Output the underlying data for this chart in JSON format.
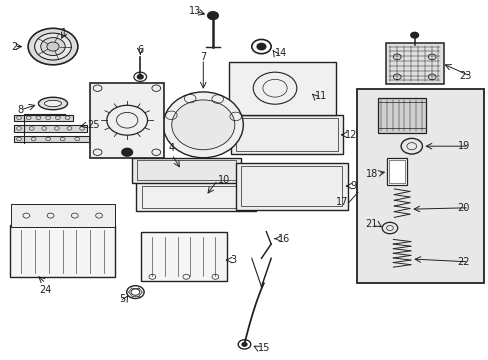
{
  "bg_color": "#ffffff",
  "line_color": "#222222",
  "box_bg": "#e8e8e8",
  "figsize": [
    4.89,
    3.6
  ],
  "dpi": 100
}
